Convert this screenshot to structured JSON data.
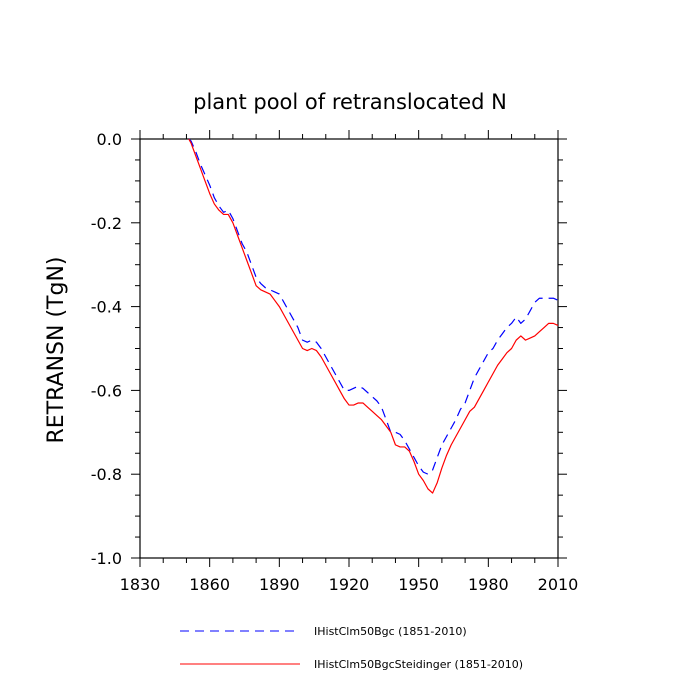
{
  "chart_data": {
    "type": "line",
    "title": "plant pool of retranslocated N",
    "xlabel": "",
    "ylabel": "RETRANSN  (TgN)",
    "xlim": [
      1830,
      2010
    ],
    "ylim": [
      -1.0,
      0.0
    ],
    "x_ticks": [
      1830,
      1860,
      1890,
      1920,
      1950,
      1980,
      2010
    ],
    "x_tick_labels": [
      "1830",
      "1860",
      "1890",
      "1920",
      "1950",
      "1980",
      "2010"
    ],
    "y_ticks": [
      0.0,
      -0.2,
      -0.4,
      -0.6,
      -0.8,
      -1.0
    ],
    "y_tick_labels": [
      "0.0",
      "-0.2",
      "-0.4",
      "-0.6",
      "-0.8",
      "-1.0"
    ],
    "grid": false,
    "legend_position": "bottom",
    "series": [
      {
        "name": "IHistClm50Bgc (1851-2010)",
        "color": "#0000ff",
        "dash": "dashed",
        "x": [
          1851,
          1852,
          1854,
          1856,
          1858,
          1860,
          1862,
          1864,
          1866,
          1868,
          1870,
          1872,
          1874,
          1876,
          1878,
          1880,
          1882,
          1884,
          1886,
          1888,
          1890,
          1892,
          1894,
          1896,
          1898,
          1900,
          1902,
          1904,
          1906,
          1908,
          1910,
          1912,
          1914,
          1916,
          1918,
          1920,
          1922,
          1924,
          1926,
          1928,
          1930,
          1932,
          1934,
          1936,
          1938,
          1940,
          1942,
          1944,
          1946,
          1948,
          1950,
          1952,
          1954,
          1956,
          1958,
          1960,
          1962,
          1964,
          1966,
          1968,
          1970,
          1972,
          1974,
          1976,
          1978,
          1980,
          1982,
          1984,
          1986,
          1988,
          1990,
          1992,
          1994,
          1996,
          1998,
          2000,
          2002,
          2004,
          2006,
          2008,
          2010
        ],
        "values": [
          0.0,
          -0.005,
          -0.03,
          -0.06,
          -0.085,
          -0.11,
          -0.14,
          -0.16,
          -0.175,
          -0.17,
          -0.19,
          -0.22,
          -0.25,
          -0.27,
          -0.3,
          -0.33,
          -0.345,
          -0.355,
          -0.36,
          -0.365,
          -0.37,
          -0.39,
          -0.41,
          -0.43,
          -0.45,
          -0.48,
          -0.485,
          -0.48,
          -0.485,
          -0.5,
          -0.52,
          -0.54,
          -0.56,
          -0.58,
          -0.6,
          -0.6,
          -0.595,
          -0.59,
          -0.595,
          -0.605,
          -0.615,
          -0.625,
          -0.64,
          -0.67,
          -0.7,
          -0.7,
          -0.705,
          -0.72,
          -0.74,
          -0.76,
          -0.78,
          -0.795,
          -0.8,
          -0.79,
          -0.76,
          -0.73,
          -0.71,
          -0.69,
          -0.67,
          -0.645,
          -0.63,
          -0.6,
          -0.57,
          -0.55,
          -0.53,
          -0.51,
          -0.5,
          -0.48,
          -0.465,
          -0.45,
          -0.44,
          -0.425,
          -0.44,
          -0.43,
          -0.41,
          -0.39,
          -0.38,
          -0.38,
          -0.38,
          -0.38,
          -0.385
        ]
      },
      {
        "name": "IHistClm50BgcSteidinger (1851-2010)",
        "color": "#ff0000",
        "dash": "solid",
        "x": [
          1851,
          1852,
          1854,
          1856,
          1858,
          1860,
          1862,
          1864,
          1866,
          1868,
          1870,
          1872,
          1874,
          1876,
          1878,
          1880,
          1882,
          1884,
          1886,
          1888,
          1890,
          1892,
          1894,
          1896,
          1898,
          1900,
          1902,
          1904,
          1906,
          1908,
          1910,
          1912,
          1914,
          1916,
          1918,
          1920,
          1922,
          1924,
          1926,
          1928,
          1930,
          1932,
          1934,
          1936,
          1938,
          1940,
          1942,
          1944,
          1946,
          1948,
          1950,
          1952,
          1954,
          1956,
          1958,
          1960,
          1962,
          1964,
          1966,
          1968,
          1970,
          1972,
          1974,
          1976,
          1978,
          1980,
          1982,
          1984,
          1986,
          1988,
          1990,
          1992,
          1994,
          1996,
          1998,
          2000,
          2002,
          2004,
          2006,
          2008,
          2010
        ],
        "values": [
          0.0,
          -0.01,
          -0.04,
          -0.07,
          -0.1,
          -0.13,
          -0.155,
          -0.17,
          -0.18,
          -0.18,
          -0.2,
          -0.23,
          -0.26,
          -0.29,
          -0.32,
          -0.35,
          -0.36,
          -0.365,
          -0.37,
          -0.385,
          -0.4,
          -0.42,
          -0.44,
          -0.46,
          -0.48,
          -0.5,
          -0.505,
          -0.5,
          -0.505,
          -0.52,
          -0.54,
          -0.56,
          -0.58,
          -0.6,
          -0.62,
          -0.635,
          -0.635,
          -0.63,
          -0.63,
          -0.64,
          -0.65,
          -0.66,
          -0.67,
          -0.685,
          -0.7,
          -0.73,
          -0.735,
          -0.735,
          -0.745,
          -0.77,
          -0.8,
          -0.815,
          -0.835,
          -0.845,
          -0.82,
          -0.785,
          -0.755,
          -0.73,
          -0.71,
          -0.69,
          -0.67,
          -0.65,
          -0.64,
          -0.62,
          -0.6,
          -0.58,
          -0.56,
          -0.54,
          -0.525,
          -0.51,
          -0.5,
          -0.48,
          -0.47,
          -0.48,
          -0.475,
          -0.47,
          -0.46,
          -0.45,
          -0.44,
          -0.44,
          -0.445
        ]
      }
    ]
  }
}
